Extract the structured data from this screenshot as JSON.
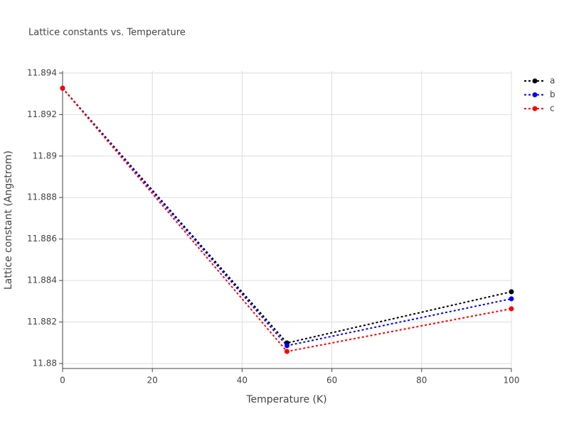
{
  "chart_data": {
    "type": "line",
    "title": "Lattice constants vs. Temperature",
    "x_label": "Temperature (K)",
    "y_label": "Lattice constant (Angstrom)",
    "x": [
      0,
      50,
      100
    ],
    "series": [
      {
        "name": "a",
        "color": "#000000",
        "values": [
          11.89327,
          11.88099,
          11.88346
        ]
      },
      {
        "name": "b",
        "color": "#0000ff",
        "values": [
          11.89327,
          11.88086,
          11.88312
        ]
      },
      {
        "name": "c",
        "color": "#ff0000",
        "values": [
          11.89327,
          11.88058,
          11.88264
        ]
      }
    ],
    "xlim": [
      0,
      100
    ],
    "xticks": [
      0,
      20,
      40,
      60,
      80,
      100
    ],
    "ylim": [
      11.87976,
      11.8941
    ],
    "yticks": [
      11.88,
      11.882,
      11.884,
      11.886,
      11.888,
      11.89,
      11.892,
      11.894
    ],
    "grid": true,
    "legend": "top-right",
    "line_style": "dotted"
  }
}
